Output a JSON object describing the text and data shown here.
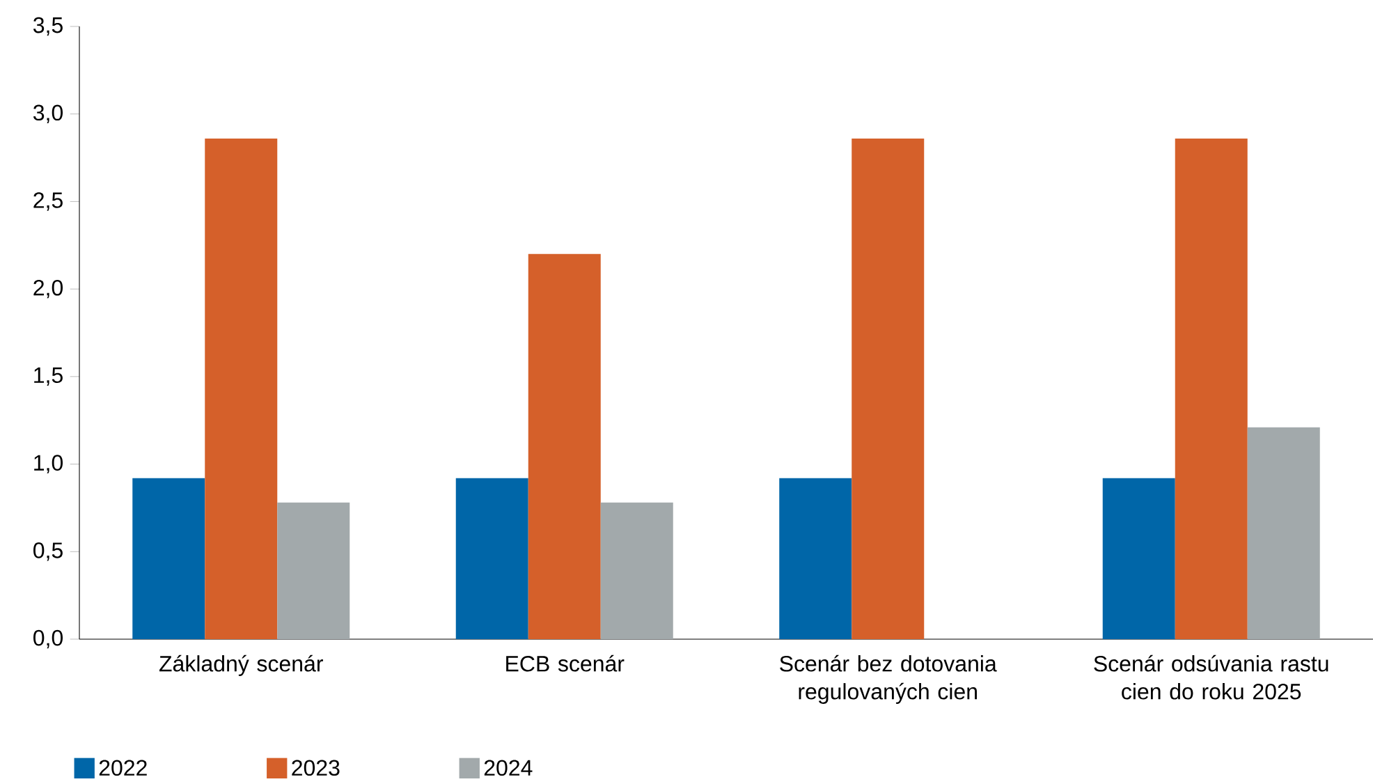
{
  "chart_data": {
    "type": "bar",
    "categories": [
      "Základný scenár",
      "ECB scenár",
      "Scenár bez dotovania regulovaných cien",
      "Scenár odsúvania rastu cien do roku 2025"
    ],
    "series": [
      {
        "name": "2022",
        "color": "#0066a8",
        "values": [
          0.92,
          0.92,
          0.92,
          0.92
        ]
      },
      {
        "name": "2023",
        "color": "#d5602a",
        "values": [
          2.86,
          2.2,
          2.86,
          2.86
        ]
      },
      {
        "name": "2024",
        "color": "#a2a9ab",
        "values": [
          0.78,
          0.78,
          null,
          1.21
        ]
      }
    ],
    "ylim": [
      0,
      3.5
    ],
    "yticks": [
      {
        "value": 0,
        "label": "0,0"
      },
      {
        "value": 0.5,
        "label": "0,5"
      },
      {
        "value": 1,
        "label": "1,0"
      },
      {
        "value": 1.5,
        "label": "1,5"
      },
      {
        "value": 2,
        "label": "2,0"
      },
      {
        "value": 2.5,
        "label": "2,5"
      },
      {
        "value": 3,
        "label": "3,0"
      },
      {
        "value": 3.5,
        "label": "3,5"
      }
    ],
    "grid": false,
    "legend": "bottom"
  }
}
